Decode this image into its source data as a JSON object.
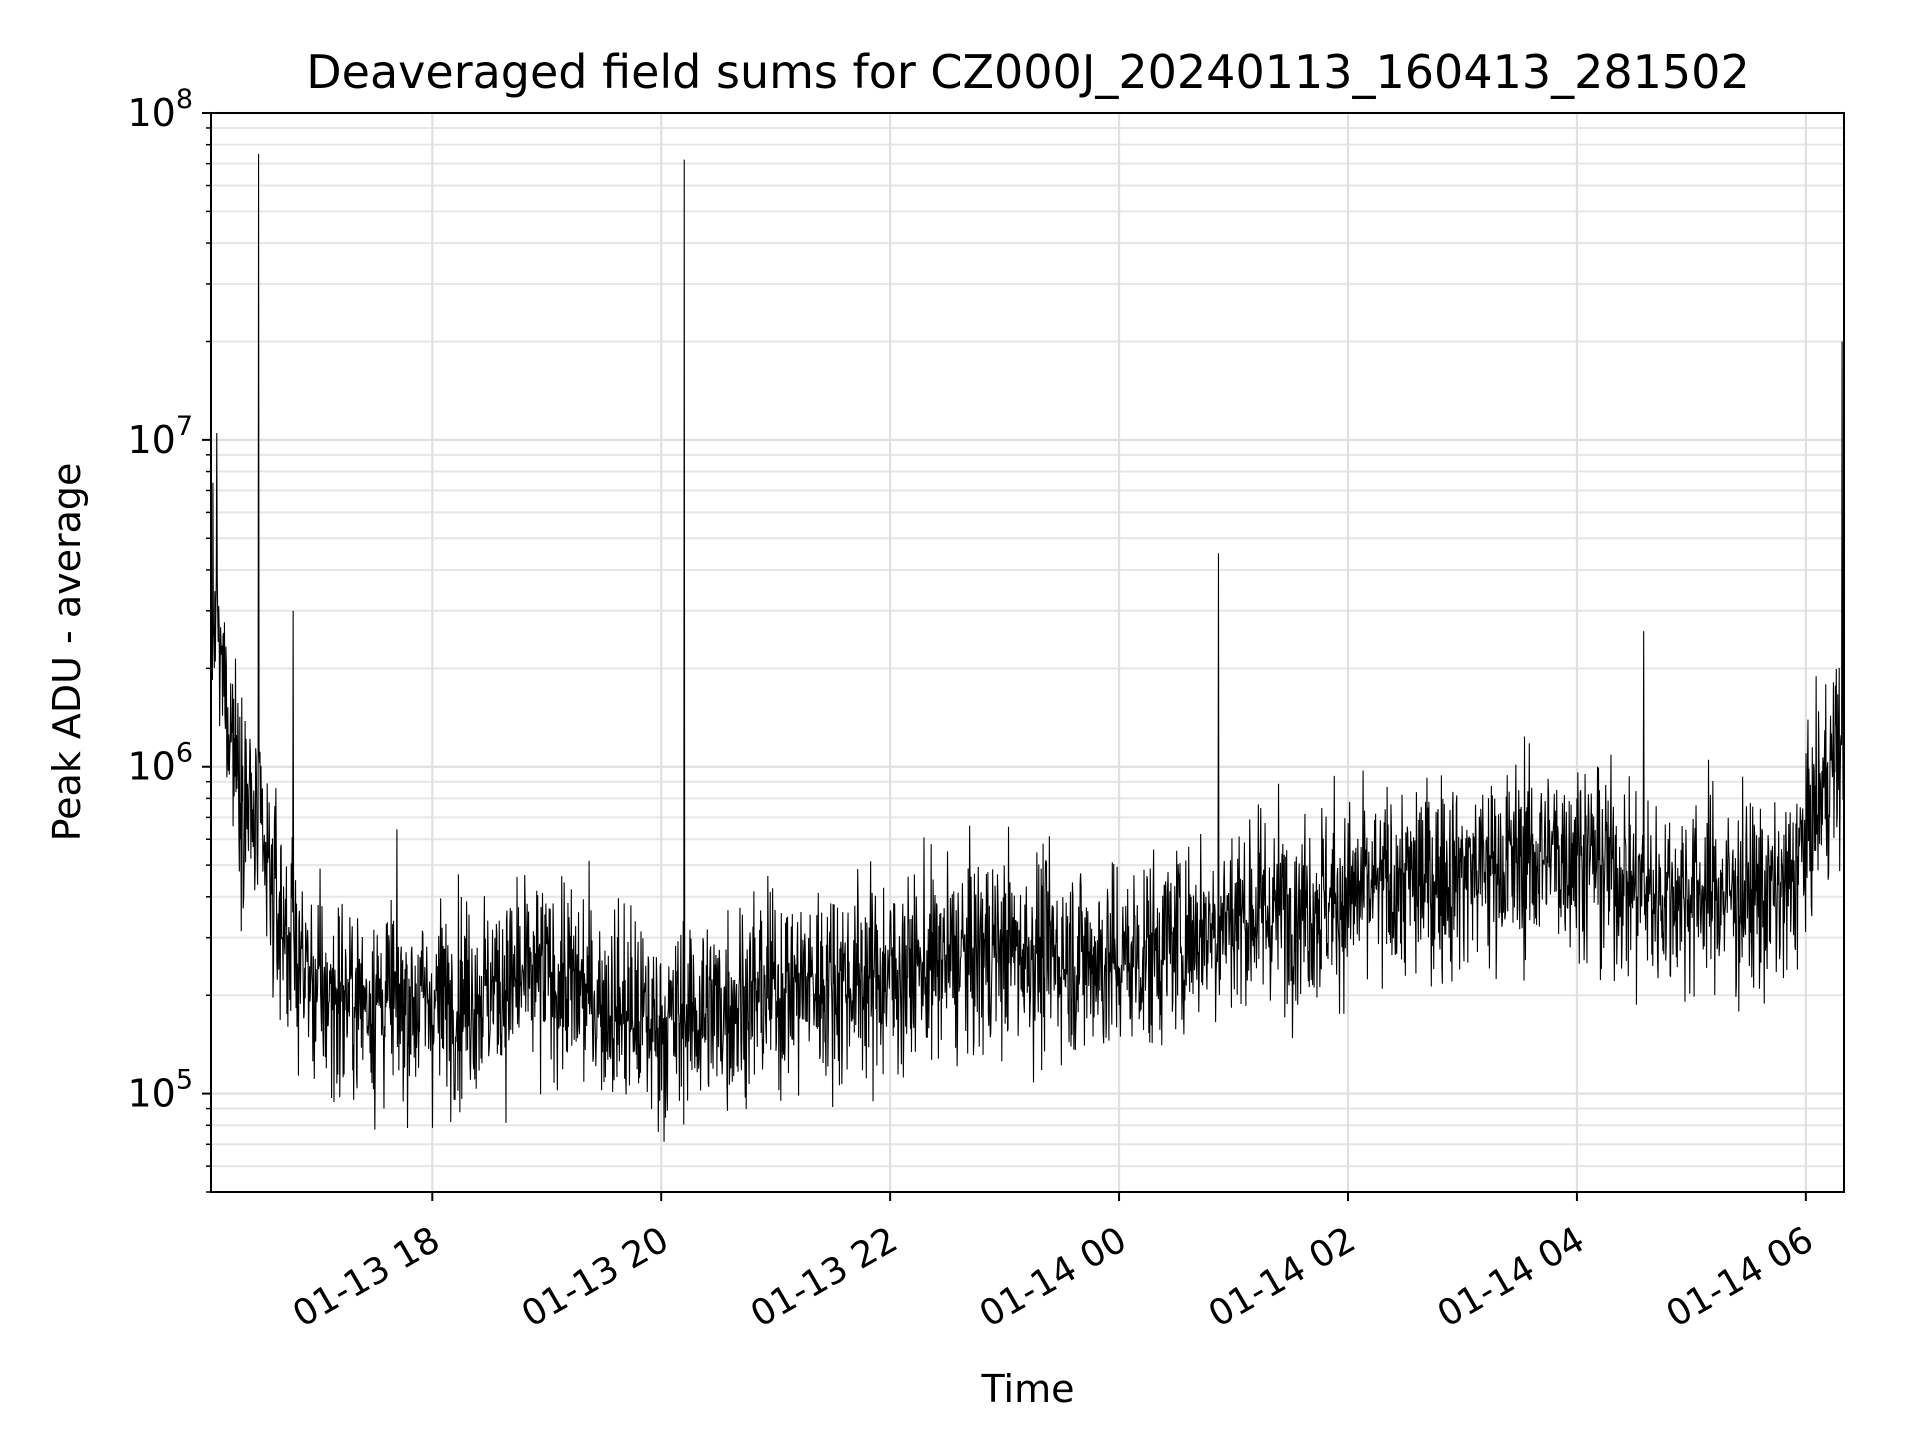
{
  "chart_data": {
    "type": "line",
    "title": "Deaveraged field sums for CZ000J_20240113_160413_281502",
    "xlabel": "Time",
    "ylabel": "Peak ADU - average",
    "x_range": [
      "2024-01-13 16:04",
      "2024-01-14 06:20"
    ],
    "ylim": [
      50000,
      100000000
    ],
    "y_scale": "log",
    "grid": true,
    "series_color": "#000000",
    "x_ticks": [
      {
        "time": "2024-01-13 18:00",
        "label": "01-13 18"
      },
      {
        "time": "2024-01-13 20:00",
        "label": "01-13 20"
      },
      {
        "time": "2024-01-13 22:00",
        "label": "01-13 22"
      },
      {
        "time": "2024-01-14 00:00",
        "label": "01-14 00"
      },
      {
        "time": "2024-01-14 02:00",
        "label": "01-14 02"
      },
      {
        "time": "2024-01-14 04:00",
        "label": "01-14 04"
      },
      {
        "time": "2024-01-14 06:00",
        "label": "01-14 06"
      }
    ],
    "y_ticks": [
      {
        "value": 100000,
        "base": "10",
        "exp": "5"
      },
      {
        "value": 1000000,
        "base": "10",
        "exp": "6"
      },
      {
        "value": 10000000,
        "base": "10",
        "exp": "7"
      },
      {
        "value": 100000000,
        "base": "10",
        "exp": "8"
      }
    ],
    "trend_points": [
      {
        "time": "2024-01-13 16:04",
        "value": 3000000
      },
      {
        "time": "2024-01-13 16:20",
        "value": 900000
      },
      {
        "time": "2024-01-13 16:40",
        "value": 350000
      },
      {
        "time": "2024-01-13 17:00",
        "value": 200000
      },
      {
        "time": "2024-01-13 18:00",
        "value": 190000
      },
      {
        "time": "2024-01-13 19:00",
        "value": 230000
      },
      {
        "time": "2024-01-13 20:00",
        "value": 160000
      },
      {
        "time": "2024-01-13 21:00",
        "value": 210000
      },
      {
        "time": "2024-01-13 22:00",
        "value": 230000
      },
      {
        "time": "2024-01-13 23:00",
        "value": 280000
      },
      {
        "time": "2024-01-14 00:00",
        "value": 250000
      },
      {
        "time": "2024-01-14 01:00",
        "value": 350000
      },
      {
        "time": "2024-01-14 02:00",
        "value": 400000
      },
      {
        "time": "2024-01-14 03:00",
        "value": 480000
      },
      {
        "time": "2024-01-14 04:00",
        "value": 560000
      },
      {
        "time": "2024-01-14 04:40",
        "value": 400000
      },
      {
        "time": "2024-01-14 05:00",
        "value": 420000
      },
      {
        "time": "2024-01-14 05:50",
        "value": 400000
      },
      {
        "time": "2024-01-14 06:10",
        "value": 900000
      },
      {
        "time": "2024-01-14 06:20",
        "value": 1200000
      }
    ],
    "spikes": [
      {
        "time": "2024-01-13 16:29",
        "value": 75000000
      },
      {
        "time": "2024-01-13 16:47",
        "value": 3000000
      },
      {
        "time": "2024-01-13 20:12",
        "value": 72000000
      },
      {
        "time": "2024-01-14 00:52",
        "value": 4500000
      },
      {
        "time": "2024-01-14 04:35",
        "value": 2600000
      },
      {
        "time": "2024-01-14 06:19",
        "value": 20000000
      },
      {
        "time": "2024-01-13 16:07",
        "value": 10500000
      }
    ]
  }
}
